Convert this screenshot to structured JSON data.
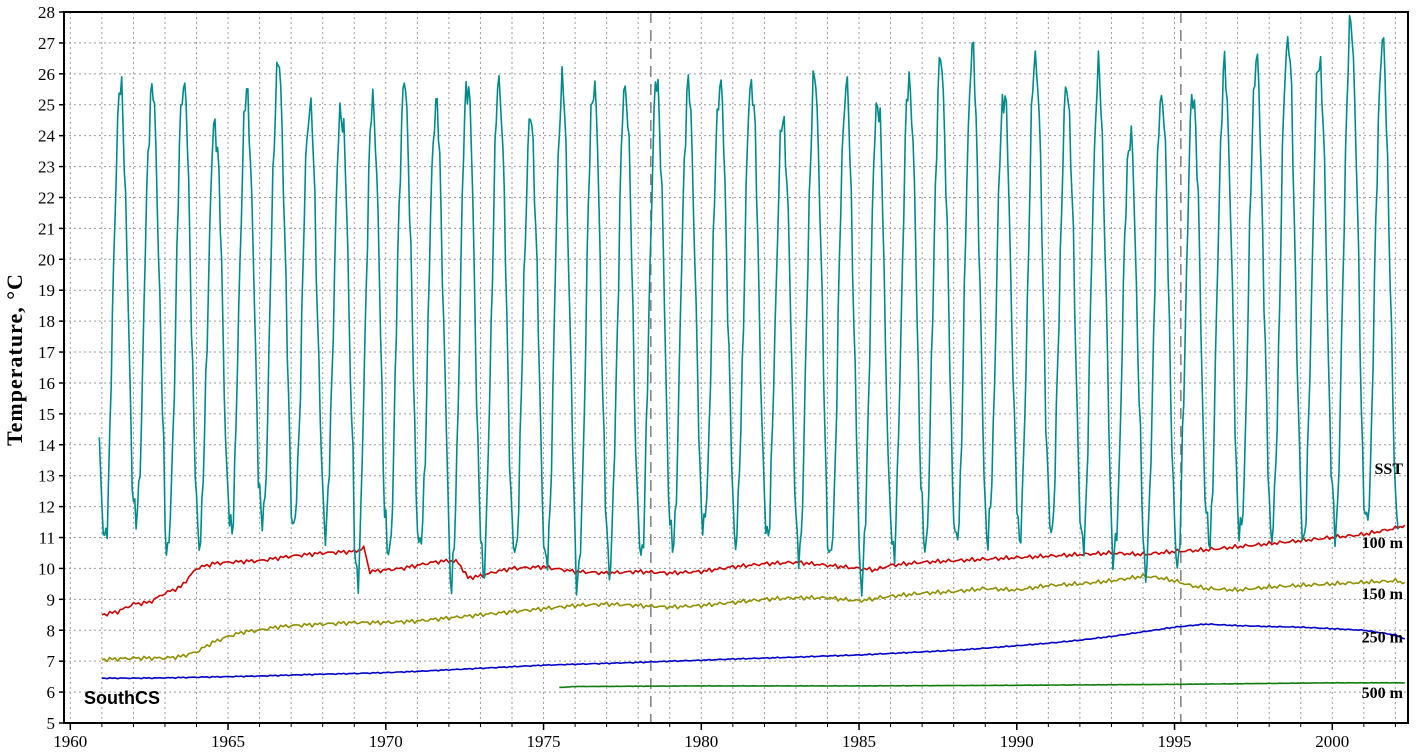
{
  "chart_data": {
    "type": "line",
    "title": "",
    "xlabel": "",
    "ylabel": "Temperature, °C",
    "region_label": "SouthCS",
    "xlim": [
      1959.8,
      2002.4
    ],
    "ylim": [
      5,
      28
    ],
    "x_ticks": [
      1960,
      1965,
      1970,
      1975,
      1980,
      1985,
      1990,
      1995,
      2000
    ],
    "y_tick_step": 1,
    "grid": "dashed",
    "legend_position": "right-inside",
    "annotations": {
      "vlines": [
        1978.4,
        1995.2
      ]
    },
    "series_labels": [
      {
        "text": "SST",
        "y": 13.25
      },
      {
        "text": "100 m",
        "y": 10.85
      },
      {
        "text": "150 m",
        "y": 9.2
      },
      {
        "text": "250 m",
        "y": 7.8
      },
      {
        "text": "500 m",
        "y": 6.0
      }
    ],
    "series": [
      {
        "name": "100 m",
        "color": "#cc0000",
        "jitter": 0.045,
        "x": [
          1961,
          1961.5,
          1962,
          1962.5,
          1963,
          1963.5,
          1964,
          1964.5,
          1965,
          1966,
          1967,
          1968,
          1969,
          1969.3,
          1969.5,
          1970,
          1970.5,
          1971,
          1971.5,
          1972,
          1972.3,
          1972.6,
          1973,
          1973.5,
          1974,
          1975,
          1976,
          1977,
          1978,
          1979,
          1980,
          1981,
          1982,
          1983,
          1984,
          1985,
          1985.5,
          1986,
          1987,
          1988,
          1989,
          1990,
          1991,
          1992,
          1993,
          1994,
          1995,
          1996,
          1997,
          1998,
          1999,
          2000,
          2001,
          2001.5,
          2002,
          2002.3
        ],
        "y": [
          8.5,
          8.6,
          8.85,
          8.9,
          9.2,
          9.4,
          10.0,
          10.15,
          10.2,
          10.25,
          10.4,
          10.5,
          10.55,
          10.65,
          9.9,
          9.95,
          10.0,
          10.1,
          10.2,
          10.25,
          10.2,
          9.7,
          9.75,
          9.9,
          10.0,
          10.05,
          9.9,
          9.85,
          9.9,
          9.85,
          9.9,
          10.05,
          10.15,
          10.2,
          10.1,
          10.0,
          9.95,
          10.1,
          10.2,
          10.25,
          10.3,
          10.35,
          10.4,
          10.45,
          10.5,
          10.45,
          10.55,
          10.6,
          10.7,
          10.8,
          10.9,
          11.0,
          11.1,
          11.2,
          11.3,
          11.4
        ]
      },
      {
        "name": "150 m",
        "color": "#8f8f00",
        "jitter": 0.045,
        "x": [
          1961,
          1962,
          1963,
          1963.5,
          1964,
          1964.5,
          1965,
          1965.5,
          1966,
          1966.5,
          1967,
          1968,
          1969,
          1970,
          1971,
          1972,
          1973,
          1974,
          1975,
          1976,
          1977,
          1978,
          1979,
          1980,
          1981,
          1982,
          1983,
          1984,
          1985,
          1986,
          1987,
          1988,
          1989,
          1990,
          1991,
          1992,
          1993,
          1994,
          1994.5,
          1995,
          1995.5,
          1996,
          1997,
          1998,
          1999,
          2000,
          2001,
          2002,
          2002.3
        ],
        "y": [
          7.05,
          7.1,
          7.1,
          7.15,
          7.3,
          7.6,
          7.8,
          7.95,
          8.0,
          8.1,
          8.15,
          8.2,
          8.25,
          8.25,
          8.3,
          8.4,
          8.5,
          8.6,
          8.7,
          8.8,
          8.85,
          8.8,
          8.75,
          8.8,
          8.9,
          9.0,
          9.05,
          9.05,
          8.95,
          9.1,
          9.2,
          9.25,
          9.35,
          9.3,
          9.45,
          9.5,
          9.6,
          9.75,
          9.7,
          9.6,
          9.45,
          9.35,
          9.3,
          9.4,
          9.45,
          9.5,
          9.55,
          9.6,
          9.55
        ]
      },
      {
        "name": "250 m",
        "color": "#0000cc",
        "jitter": 0.012,
        "x": [
          1961,
          1962,
          1963,
          1964,
          1965,
          1966,
          1967,
          1968,
          1969,
          1970,
          1971,
          1972,
          1973,
          1974,
          1975,
          1976,
          1977,
          1978,
          1979,
          1980,
          1981,
          1982,
          1983,
          1984,
          1985,
          1986,
          1987,
          1988,
          1989,
          1990,
          1991,
          1992,
          1993,
          1994,
          1995,
          1996,
          1997,
          1998,
          1999,
          2000,
          2001,
          2002,
          2002.3
        ],
        "y": [
          6.45,
          6.45,
          6.46,
          6.48,
          6.5,
          6.52,
          6.55,
          6.58,
          6.6,
          6.63,
          6.67,
          6.72,
          6.77,
          6.82,
          6.87,
          6.9,
          6.93,
          6.96,
          7.0,
          7.03,
          7.07,
          7.1,
          7.13,
          7.17,
          7.2,
          7.25,
          7.3,
          7.35,
          7.42,
          7.5,
          7.58,
          7.68,
          7.8,
          7.95,
          8.1,
          8.2,
          8.15,
          8.12,
          8.1,
          8.05,
          8.0,
          7.85,
          7.72
        ]
      },
      {
        "name": "500 m",
        "color": "#117d11",
        "jitter": 0.004,
        "x": [
          1975.5,
          1976,
          1980,
          1985,
          1990,
          1995,
          2000,
          2002.3
        ],
        "y": [
          6.15,
          6.18,
          6.2,
          6.2,
          6.22,
          6.25,
          6.3,
          6.3
        ]
      },
      {
        "name": "SST",
        "color": "#008b8b",
        "type": "seasonal",
        "start": 1960.92,
        "end": 2002.12,
        "years": [
          1961,
          1962,
          1963,
          1964,
          1965,
          1966,
          1967,
          1968,
          1969,
          1970,
          1971,
          1972,
          1973,
          1974,
          1975,
          1976,
          1977,
          1978,
          1979,
          1980,
          1981,
          1982,
          1983,
          1984,
          1985,
          1986,
          1987,
          1988,
          1989,
          1990,
          1991,
          1992,
          1993,
          1994,
          1995,
          1996,
          1997,
          1998,
          1999,
          2000,
          2001,
          2002
        ],
        "winter_min": [
          10.8,
          11.5,
          10.6,
          11.0,
          11.2,
          11.4,
          11.3,
          11.4,
          9.7,
          10.3,
          10.6,
          9.7,
          10.0,
          10.4,
          10.0,
          9.6,
          10.1,
          10.4,
          10.6,
          11.3,
          11.0,
          11.1,
          10.3,
          10.2,
          9.6,
          10.6,
          10.6,
          10.7,
          11.0,
          11.1,
          11.2,
          10.6,
          10.3,
          10.0,
          10.2,
          10.8,
          11.0,
          11.1,
          11.0,
          11.2,
          11.3,
          11.5
        ],
        "summer_max": [
          25.5,
          25.5,
          25.8,
          24.4,
          25.3,
          26.3,
          25.0,
          24.9,
          25.0,
          25.6,
          25.0,
          25.8,
          25.7,
          24.5,
          25.6,
          25.7,
          25.6,
          25.7,
          25.5,
          25.7,
          25.8,
          24.5,
          25.8,
          25.6,
          25.2,
          25.8,
          26.4,
          26.7,
          25.4,
          26.6,
          25.5,
          26.0,
          24.0,
          25.4,
          25.3,
          26.1,
          26.4,
          27.2,
          26.5,
          27.6,
          26.9,
          26.4
        ]
      }
    ]
  }
}
